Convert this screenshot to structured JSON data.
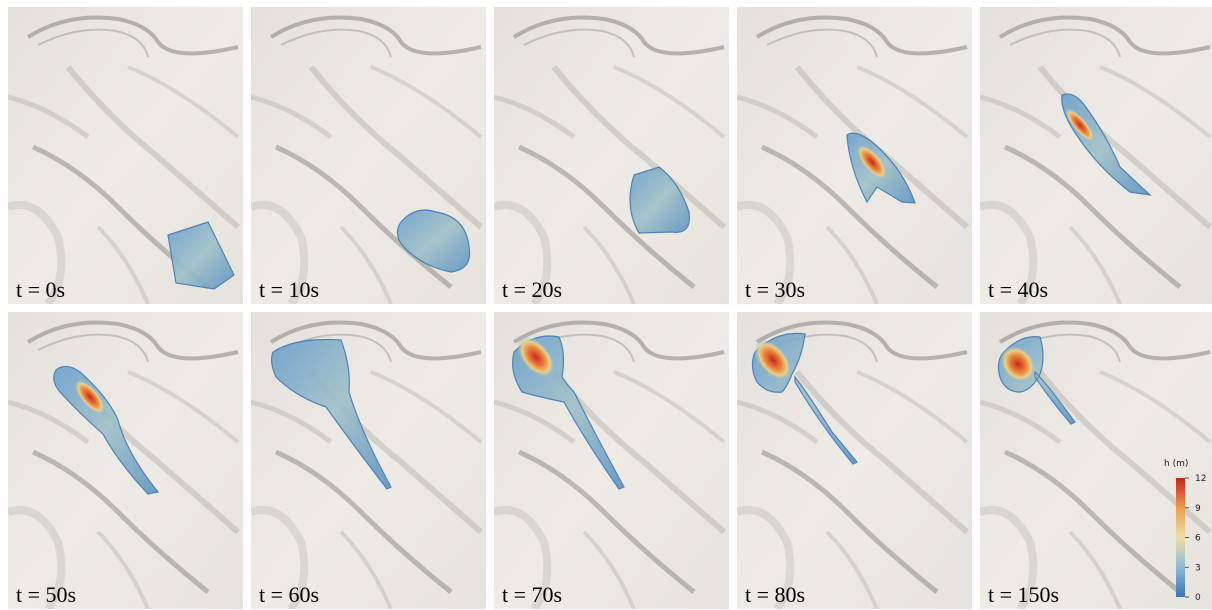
{
  "panels": [
    {
      "label": "t = 0s"
    },
    {
      "label": "t = 10s"
    },
    {
      "label": "t = 20s"
    },
    {
      "label": "t = 30s"
    },
    {
      "label": "t = 40s"
    },
    {
      "label": "t = 50s"
    },
    {
      "label": "t = 60s"
    },
    {
      "label": "t = 70s"
    },
    {
      "label": "t = 80s"
    },
    {
      "label": "t = 150s"
    }
  ],
  "colorbar": {
    "title": "h (m)",
    "ticks": [
      0,
      3,
      6,
      9,
      12
    ]
  }
}
